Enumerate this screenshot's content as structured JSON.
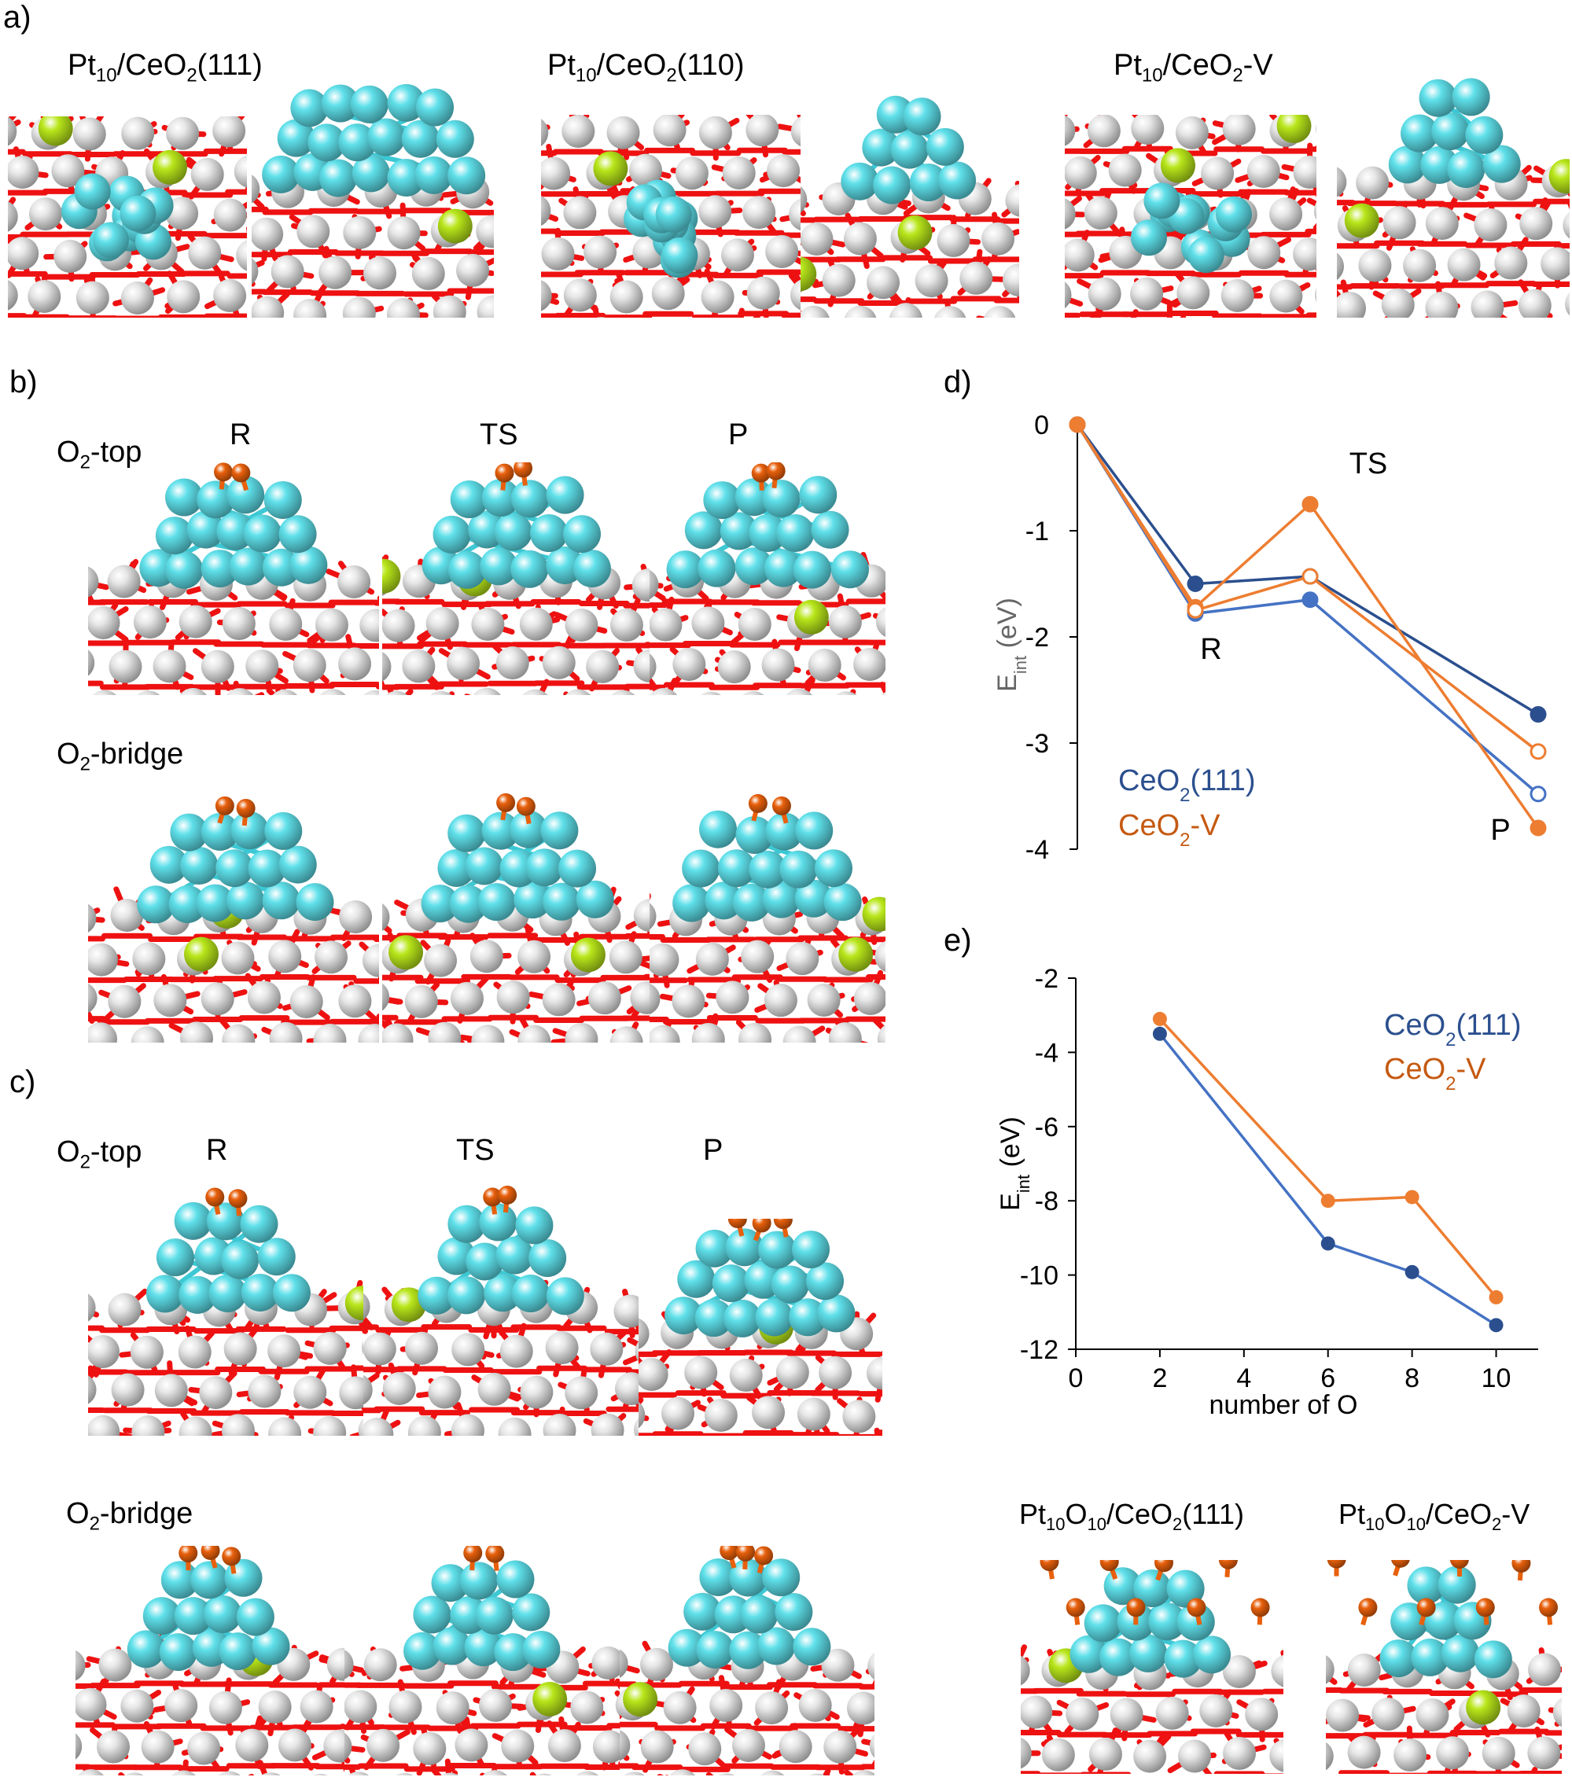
{
  "panels": {
    "a": {
      "letter": "a)",
      "titles": [
        {
          "main": "Pt",
          "sub": "10",
          "rest": "/CeO",
          "sub2": "2",
          "tail": "(111)"
        },
        {
          "main": "Pt",
          "sub": "10",
          "rest": "/CeO",
          "sub2": "2",
          "tail": "(110)"
        },
        {
          "main": "Pt",
          "sub": "10",
          "rest": "/CeO",
          "sub2": "2",
          "tail": "-V"
        }
      ]
    },
    "b": {
      "letter": "b)",
      "row1": {
        "pre": "O",
        "sub": "2",
        "post": "-top"
      },
      "row2": {
        "pre": "O",
        "sub": "2",
        "post": "-bridge"
      },
      "states": [
        "R",
        "TS",
        "P"
      ]
    },
    "c": {
      "letter": "c)",
      "row1": {
        "pre": "O",
        "sub": "2",
        "post": "-top"
      },
      "row2": {
        "pre": "O",
        "sub": "2",
        "post": "-bridge"
      },
      "states": [
        "R",
        "TS",
        "P"
      ]
    },
    "d": {
      "letter": "d)"
    },
    "e": {
      "letter": "e)",
      "bottom_titles": [
        {
          "a": "Pt",
          "s1": "10",
          "b": "O",
          "s2": "10",
          "c": "/CeO",
          "s3": "2",
          "d": "(111)"
        },
        {
          "a": "Pt",
          "s1": "10",
          "b": "O",
          "s2": "10",
          "c": "/CeO",
          "s3": "2",
          "d": "-V"
        }
      ]
    }
  },
  "colors": {
    "blue_dark": "#2b4f8e",
    "blue": "#4472c4",
    "orange": "#ed7d31",
    "orange_dark": "#c55a11",
    "pt": "#5fe0ea",
    "ce": "#e6e6e6",
    "ox": "#ee1111",
    "ads_o": "#e8600c",
    "dopant": "#b8e61a"
  },
  "chart_data": [
    {
      "type": "line",
      "panel": "d",
      "ylabel": "E_int (eV)",
      "xlabel": "",
      "ylim": [
        -4,
        0
      ],
      "yticks": [
        "0",
        "-1",
        "-2",
        "-3",
        "-4"
      ],
      "annotations": [
        "TS",
        "R",
        "P"
      ],
      "legend": [
        "CeO2(111)",
        "CeO2-V"
      ],
      "x": [
        0,
        1,
        2,
        3
      ],
      "series": [
        {
          "name": "CeO2(111)",
          "color": "#2b4f8e",
          "marker": "filled",
          "values": [
            0,
            -1.5,
            -1.43,
            -2.73
          ]
        },
        {
          "name": "CeO2(111)",
          "color": "#4472c4",
          "marker": "open-last",
          "values": [
            0,
            -1.78,
            -1.65,
            -3.48
          ]
        },
        {
          "name": "CeO2-V",
          "color": "#ed7d31",
          "marker": "filled",
          "values": [
            0,
            -1.72,
            -0.75,
            -3.8
          ]
        },
        {
          "name": "CeO2-V",
          "color": "#ed7d31",
          "marker": "open",
          "values": [
            0,
            -1.75,
            -1.43,
            -3.08
          ]
        }
      ]
    },
    {
      "type": "line",
      "panel": "e",
      "xlabel": "number of O",
      "ylabel": "E_int (eV)",
      "xlim": [
        0,
        11
      ],
      "ylim": [
        -12,
        -2
      ],
      "xticks": [
        "0",
        "2",
        "4",
        "6",
        "8",
        "10"
      ],
      "yticks": [
        "-2",
        "-4",
        "-6",
        "-8",
        "-10",
        "-12"
      ],
      "legend": [
        "CeO2(111)",
        "CeO2-V"
      ],
      "series": [
        {
          "name": "CeO2(111)",
          "color": "#4472c4",
          "marker_color": "#2b4f8e",
          "x": [
            2,
            6,
            8,
            10
          ],
          "values": [
            -3.5,
            -9.15,
            -9.92,
            -11.35
          ]
        },
        {
          "name": "CeO2-V",
          "color": "#ed7d31",
          "marker_color": "#ed7d31",
          "x": [
            2,
            6,
            8,
            10
          ],
          "values": [
            -3.1,
            -8.0,
            -7.9,
            -10.6
          ]
        }
      ]
    }
  ]
}
